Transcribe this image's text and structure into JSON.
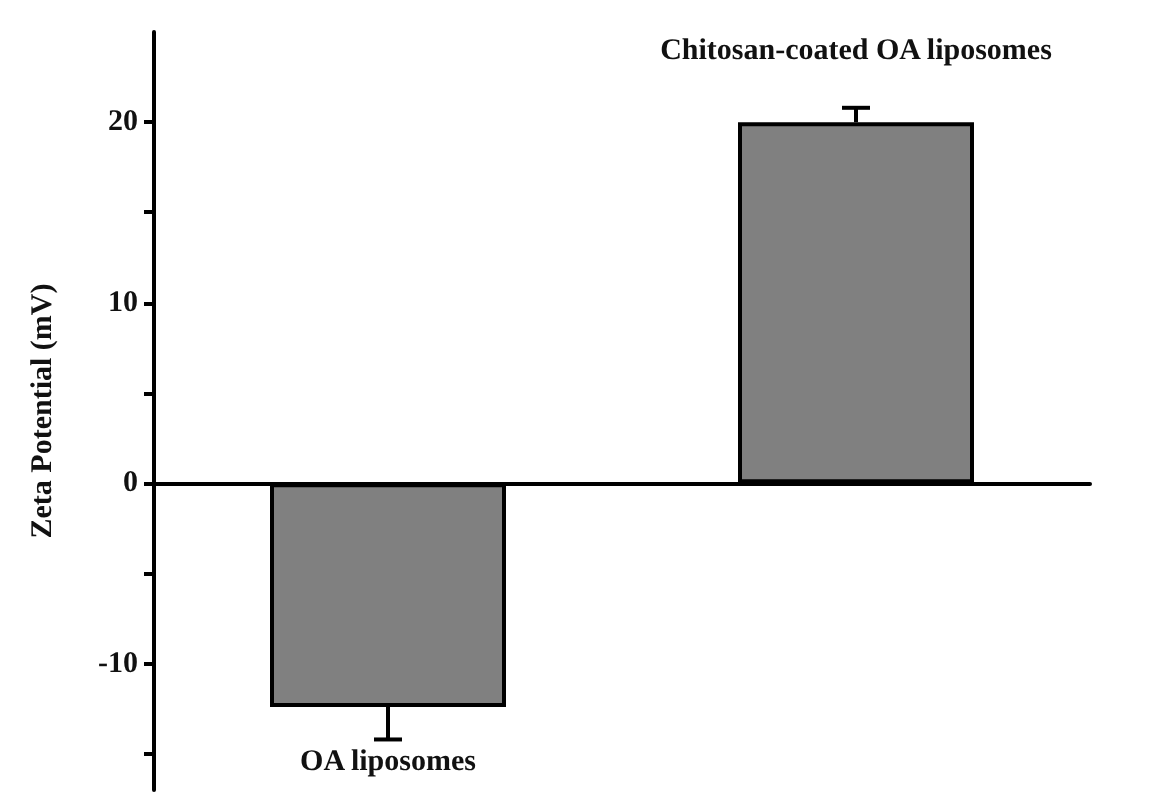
{
  "chart_data": {
    "type": "bar",
    "ylabel": "Zeta Potential (mV)",
    "categories": [
      "OA liposomes",
      "Chitosan-coated OA liposomes"
    ],
    "values": [
      -12.4,
      20
    ],
    "errors": [
      [
        -14.2,
        -12.4
      ],
      [
        20,
        20.8
      ]
    ],
    "color": "#808080",
    "ylim": [
      -17,
      25
    ],
    "yticks": [
      {
        "value": -15,
        "label": null
      },
      -10,
      {
        "value": -5,
        "label": null
      },
      0,
      {
        "value": 5,
        "label": null
      },
      10,
      {
        "value": 15,
        "label": null
      },
      20
    ],
    "tick_labels": "y"
  }
}
